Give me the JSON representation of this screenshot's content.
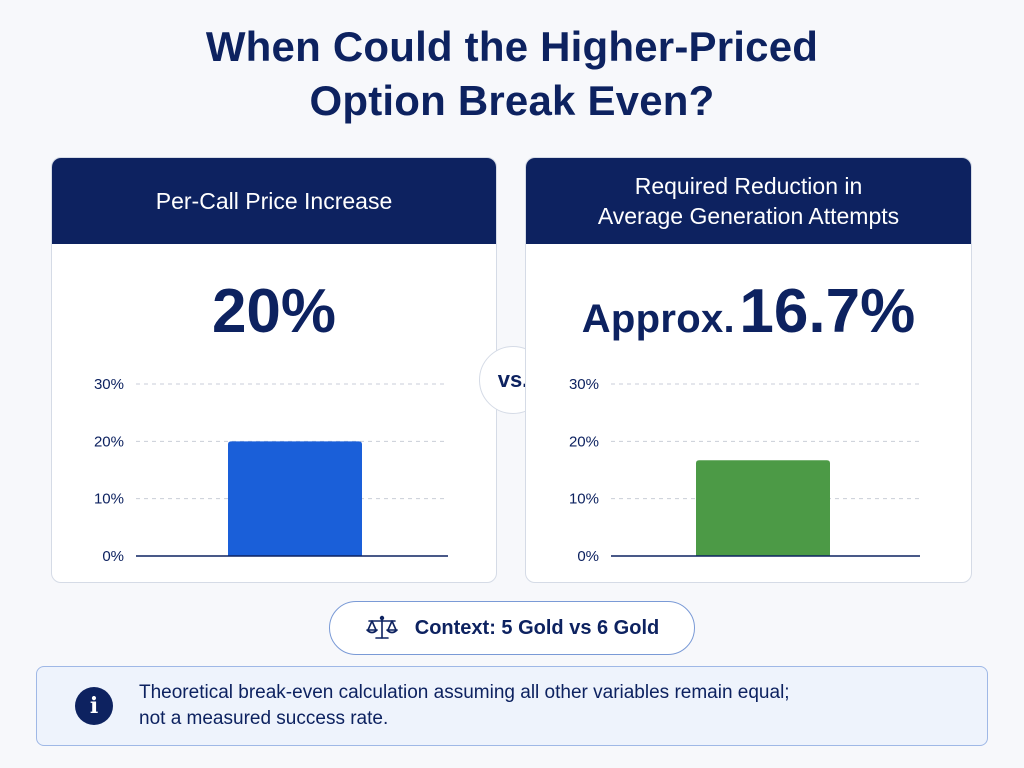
{
  "title": {
    "line1": "When Could the Higher-Priced",
    "line2": "Option Break Even?"
  },
  "vs_label": "vs.",
  "context": {
    "icon": "balance-scale-icon",
    "text": "Context: 5 Gold vs 6 Gold"
  },
  "note": {
    "icon": "info-icon",
    "icon_glyph": "i",
    "line1": "Theoretical break-even calculation assuming all other variables remain equal;",
    "line2": "not a measured success rate."
  },
  "colors": {
    "navy": "#0d2260",
    "blue_bar": "#1a5fd9",
    "green_bar": "#4c9a46"
  },
  "chart_data": [
    {
      "type": "bar",
      "header": [
        "Per-Call Price Increase"
      ],
      "big_value_prefix": "",
      "big_value": "20%",
      "categories": [
        ""
      ],
      "values": [
        20
      ],
      "ylim": [
        0,
        30
      ],
      "yticks": [
        "0%",
        "10%",
        "20%",
        "30%"
      ],
      "ytick_values": [
        0,
        10,
        20,
        30
      ],
      "grid": true,
      "bar_color": "#1a5fd9"
    },
    {
      "type": "bar",
      "header": [
        "Required Reduction in",
        "Average Generation Attempts"
      ],
      "big_value_prefix": "Approx.",
      "big_value": "16.7%",
      "categories": [
        ""
      ],
      "values": [
        16.7
      ],
      "ylim": [
        0,
        30
      ],
      "yticks": [
        "0%",
        "10%",
        "20%",
        "30%"
      ],
      "ytick_values": [
        0,
        10,
        20,
        30
      ],
      "grid": true,
      "bar_color": "#4c9a46"
    }
  ]
}
